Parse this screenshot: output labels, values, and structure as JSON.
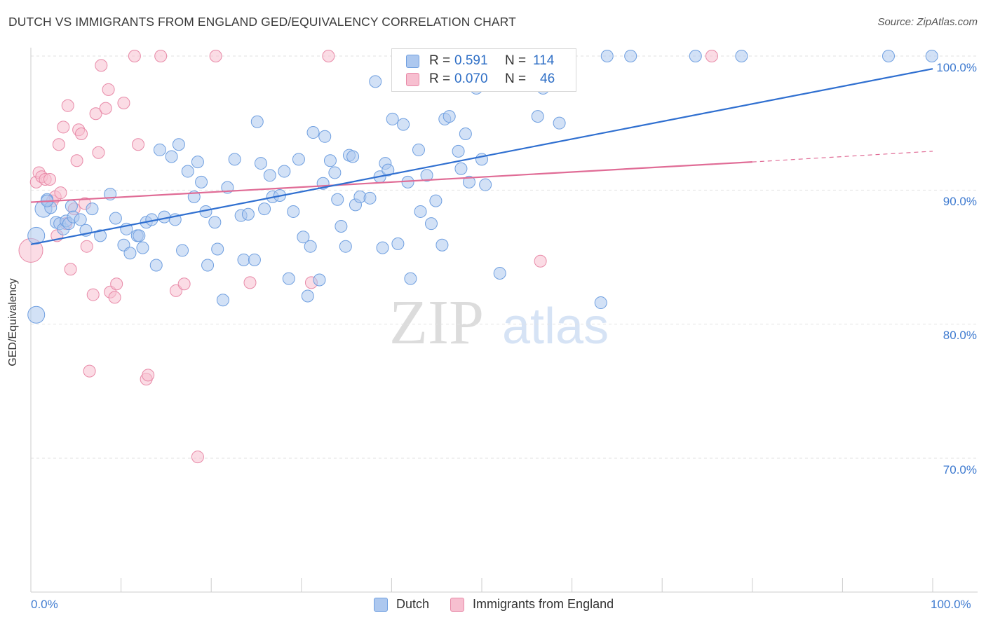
{
  "title": "DUTCH VS IMMIGRANTS FROM ENGLAND GED/EQUIVALENCY CORRELATION CHART",
  "source": "Source: ZipAtlas.com",
  "watermark": {
    "zip": "ZIP",
    "atlas": "atlas"
  },
  "colors": {
    "dutch": "#6f9fe0",
    "dutch_fill": "#adc8ef",
    "england": "#e88aa8",
    "england_fill": "#f7bfd0",
    "dutch_line": "#2f6fd0",
    "england_line": "#e06c96",
    "axis_text": "#3f7bd0"
  },
  "legend": {
    "dutch": {
      "r_label": "R =",
      "r_value": "0.591",
      "n_label": "N =",
      "n_value": "114"
    },
    "england": {
      "r_label": "R =",
      "r_value": "0.070",
      "n_label": "N =",
      "n_value": "46"
    }
  },
  "bottom_legend": {
    "dutch": "Dutch",
    "england": "Immigrants from England"
  },
  "chart_data": {
    "type": "scatter",
    "title": "DUTCH VS IMMIGRANTS FROM ENGLAND GED/EQUIVALENCY CORRELATION CHART",
    "xlabel": "",
    "ylabel": "GED/Equivalency",
    "xlim": [
      0,
      100
    ],
    "ylim": [
      61.5,
      101.5
    ],
    "x_tick_labels": [
      "0.0%",
      "100.0%"
    ],
    "y_ticks": [
      70,
      80,
      90,
      100
    ],
    "y_tick_labels": [
      "70.0%",
      "80.0%",
      "90.0%",
      "100.0%"
    ],
    "grid": true,
    "series": [
      {
        "name": "Dutch",
        "R": 0.591,
        "N": 114,
        "trend": {
          "x": [
            0,
            100
          ],
          "y": [
            85.95,
            99.05
          ]
        },
        "points": [
          [
            0.6,
            86.6
          ],
          [
            0.6,
            80.7
          ],
          [
            1.4,
            88.6
          ],
          [
            1.8,
            89.3
          ],
          [
            2.2,
            88.7
          ],
          [
            2.8,
            87.6
          ],
          [
            3.2,
            87.5
          ],
          [
            3.6,
            87.1
          ],
          [
            3.9,
            87.7
          ],
          [
            4.2,
            87.5
          ],
          [
            4.5,
            88.8
          ],
          [
            4.7,
            88.0
          ],
          [
            5.5,
            87.8
          ],
          [
            6.1,
            87.0
          ],
          [
            6.8,
            88.6
          ],
          [
            7.7,
            86.6
          ],
          [
            8.8,
            89.7
          ],
          [
            9.4,
            87.9
          ],
          [
            10.3,
            85.9
          ],
          [
            10.6,
            87.1
          ],
          [
            11.0,
            85.3
          ],
          [
            11.8,
            86.6
          ],
          [
            12.0,
            86.6
          ],
          [
            12.4,
            85.7
          ],
          [
            12.8,
            87.6
          ],
          [
            13.4,
            87.8
          ],
          [
            13.9,
            84.4
          ],
          [
            14.3,
            93.0
          ],
          [
            14.8,
            88.0
          ],
          [
            15.6,
            92.5
          ],
          [
            16.0,
            87.8
          ],
          [
            16.4,
            93.4
          ],
          [
            16.8,
            85.5
          ],
          [
            17.4,
            91.4
          ],
          [
            18.1,
            89.5
          ],
          [
            18.5,
            92.1
          ],
          [
            18.9,
            90.6
          ],
          [
            19.4,
            88.4
          ],
          [
            19.6,
            84.4
          ],
          [
            20.4,
            87.6
          ],
          [
            20.7,
            85.6
          ],
          [
            21.3,
            81.8
          ],
          [
            21.8,
            90.2
          ],
          [
            22.6,
            92.3
          ],
          [
            23.3,
            88.1
          ],
          [
            23.6,
            84.8
          ],
          [
            24.1,
            88.2
          ],
          [
            24.8,
            84.8
          ],
          [
            25.1,
            95.1
          ],
          [
            25.5,
            92.0
          ],
          [
            25.9,
            88.6
          ],
          [
            26.5,
            91.1
          ],
          [
            26.8,
            89.5
          ],
          [
            27.6,
            89.6
          ],
          [
            28.1,
            91.4
          ],
          [
            28.6,
            83.4
          ],
          [
            29.1,
            88.4
          ],
          [
            29.7,
            92.3
          ],
          [
            30.2,
            86.5
          ],
          [
            30.7,
            82.1
          ],
          [
            31.0,
            85.8
          ],
          [
            31.3,
            94.3
          ],
          [
            32.0,
            83.3
          ],
          [
            32.4,
            90.5
          ],
          [
            32.6,
            94.0
          ],
          [
            33.2,
            92.2
          ],
          [
            33.7,
            91.3
          ],
          [
            34.0,
            89.3
          ],
          [
            34.4,
            87.3
          ],
          [
            34.9,
            85.8
          ],
          [
            35.3,
            92.6
          ],
          [
            35.7,
            92.5
          ],
          [
            36.0,
            88.9
          ],
          [
            36.5,
            89.5
          ],
          [
            37.6,
            89.4
          ],
          [
            38.2,
            98.1
          ],
          [
            38.7,
            91.0
          ],
          [
            39.0,
            85.7
          ],
          [
            39.3,
            92.0
          ],
          [
            39.6,
            91.5
          ],
          [
            40.1,
            95.3
          ],
          [
            40.7,
            86.0
          ],
          [
            41.3,
            94.9
          ],
          [
            41.8,
            90.6
          ],
          [
            42.1,
            83.4
          ],
          [
            43.0,
            93.0
          ],
          [
            43.2,
            88.4
          ],
          [
            43.9,
            91.1
          ],
          [
            44.4,
            87.5
          ],
          [
            44.9,
            89.2
          ],
          [
            45.6,
            85.9
          ],
          [
            45.9,
            95.3
          ],
          [
            46.4,
            95.5
          ],
          [
            47.4,
            92.9
          ],
          [
            47.7,
            91.6
          ],
          [
            48.2,
            94.2
          ],
          [
            48.6,
            90.6
          ],
          [
            49.0,
            98.8
          ],
          [
            49.2,
            100.0
          ],
          [
            49.4,
            97.6
          ],
          [
            50.0,
            92.3
          ],
          [
            50.4,
            90.4
          ],
          [
            52.0,
            83.8
          ],
          [
            56.2,
            95.5
          ],
          [
            56.8,
            97.6
          ],
          [
            58.6,
            95.0
          ],
          [
            63.2,
            81.6
          ],
          [
            63.9,
            100.0
          ],
          [
            66.5,
            100.0
          ],
          [
            73.7,
            100.0
          ],
          [
            78.8,
            100.0
          ],
          [
            95.1,
            100.0
          ],
          [
            99.9,
            100.0
          ],
          [
            1.8,
            89.2
          ]
        ]
      },
      {
        "name": "Immigrants from England",
        "R": 0.07,
        "N": 46,
        "trend": {
          "x": [
            0,
            80
          ],
          "y": [
            89.1,
            92.1
          ]
        },
        "trend_dashed": {
          "x": [
            80,
            100
          ],
          "y": [
            92.1,
            92.9
          ]
        },
        "points": [
          [
            0.0,
            85.5
          ],
          [
            0.6,
            90.6
          ],
          [
            0.9,
            91.3
          ],
          [
            1.2,
            91.0
          ],
          [
            1.6,
            90.8
          ],
          [
            2.1,
            90.8
          ],
          [
            2.4,
            89.2
          ],
          [
            2.7,
            89.5
          ],
          [
            2.9,
            86.6
          ],
          [
            3.1,
            93.4
          ],
          [
            3.3,
            89.8
          ],
          [
            3.6,
            94.7
          ],
          [
            3.9,
            87.5
          ],
          [
            4.1,
            96.3
          ],
          [
            4.4,
            84.1
          ],
          [
            4.8,
            88.6
          ],
          [
            5.1,
            92.2
          ],
          [
            5.3,
            94.5
          ],
          [
            5.6,
            94.2
          ],
          [
            6.0,
            89.0
          ],
          [
            6.2,
            85.8
          ],
          [
            6.5,
            76.5
          ],
          [
            6.9,
            82.2
          ],
          [
            7.2,
            95.7
          ],
          [
            7.5,
            92.8
          ],
          [
            7.8,
            99.3
          ],
          [
            8.3,
            96.1
          ],
          [
            8.6,
            97.5
          ],
          [
            8.8,
            82.4
          ],
          [
            9.3,
            82.0
          ],
          [
            9.5,
            83.0
          ],
          [
            10.3,
            96.5
          ],
          [
            11.5,
            100.0
          ],
          [
            11.9,
            93.4
          ],
          [
            12.8,
            75.9
          ],
          [
            13.0,
            76.2
          ],
          [
            14.4,
            100.0
          ],
          [
            16.1,
            82.5
          ],
          [
            17.0,
            83.0
          ],
          [
            18.5,
            70.1
          ],
          [
            20.5,
            100.0
          ],
          [
            31.1,
            83.1
          ],
          [
            33.0,
            100.0
          ],
          [
            56.5,
            84.7
          ],
          [
            75.5,
            100.0
          ],
          [
            24.3,
            83.1
          ]
        ]
      }
    ]
  }
}
